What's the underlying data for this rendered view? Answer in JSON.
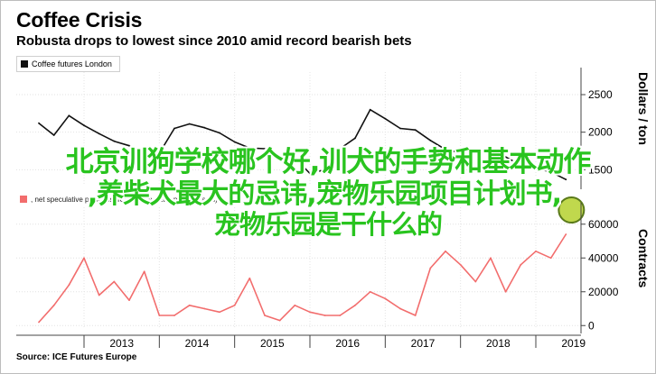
{
  "title": "Coffee Crisis",
  "subtitle": "Robusta drops to lowest since 2010 amid record bearish bets",
  "legend_top": "Coffee futures London",
  "legend_bottom": ", net speculative positions, ICE Futures Europe (contracts)",
  "axis_top_title": "Dollars / ton",
  "axis_bottom_title": "Contracts",
  "source": "Source: ICE Futures Europe",
  "overlay": {
    "line1": "北京训狗学校哪个好,训犬的手势和基本动作",
    "line2": ",养柴犬最大的忌讳,宠物乐园项目计划书,",
    "line3": "宠物乐园是干什么的"
  },
  "colors": {
    "price_line": "#111111",
    "positions_line": "#f26d6d",
    "marker_fill": "#b9d43a",
    "marker_stroke": "#5a7a1a",
    "overlay_text": "#29c41f"
  },
  "chart_data": [
    {
      "type": "line",
      "title": "Robusta drops to lowest since 2010 amid record bearish bets",
      "ylabel": "Dollars / ton",
      "series": [
        {
          "name": "Coffee futures London"
        }
      ],
      "x": [
        2012.4,
        2012.6,
        2012.8,
        2013.0,
        2013.2,
        2013.4,
        2013.6,
        2013.8,
        2014.0,
        2014.2,
        2014.4,
        2014.6,
        2014.8,
        2015.0,
        2015.2,
        2015.4,
        2015.6,
        2015.8,
        2016.0,
        2016.2,
        2016.4,
        2016.6,
        2016.8,
        2017.0,
        2017.2,
        2017.4,
        2017.6,
        2017.8,
        2018.0,
        2018.2,
        2018.4,
        2018.6,
        2018.8,
        2019.0,
        2019.2,
        2019.4
      ],
      "y": [
        2120,
        1960,
        2220,
        2090,
        1980,
        1880,
        1820,
        1650,
        1720,
        2050,
        2110,
        2060,
        1990,
        1870,
        1790,
        1780,
        1620,
        1660,
        1450,
        1500,
        1780,
        1920,
        2300,
        2180,
        2050,
        2030,
        1890,
        1770,
        1720,
        1780,
        1720,
        1670,
        1560,
        1520,
        1470,
        1370
      ],
      "xlim": [
        2012.1,
        2019.6
      ],
      "ylim": [
        1300,
        2800
      ],
      "yticks": [
        1500,
        2000,
        2500
      ],
      "grid": true
    },
    {
      "type": "line",
      "ylabel": "Contracts",
      "series": [
        {
          "name": ", net speculative positions, ICE Futures Europe (contracts)"
        }
      ],
      "x": [
        2012.4,
        2012.6,
        2012.8,
        2013.0,
        2013.2,
        2013.4,
        2013.6,
        2013.8,
        2014.0,
        2014.2,
        2014.4,
        2014.6,
        2014.8,
        2015.0,
        2015.2,
        2015.4,
        2015.6,
        2015.8,
        2016.0,
        2016.2,
        2016.4,
        2016.6,
        2016.8,
        2017.0,
        2017.2,
        2017.4,
        2017.6,
        2017.8,
        2018.0,
        2018.2,
        2018.4,
        2018.6,
        2018.8,
        2019.0,
        2019.2,
        2019.4
      ],
      "y": [
        2000,
        12000,
        24000,
        40000,
        18000,
        26000,
        15000,
        32000,
        6000,
        6000,
        12000,
        10000,
        8000,
        12000,
        28000,
        6000,
        3000,
        12000,
        8000,
        6000,
        6000,
        12000,
        20000,
        16000,
        10000,
        6000,
        34000,
        44000,
        36000,
        26000,
        40000,
        20000,
        36000,
        44000,
        40000,
        54000
      ],
      "xlim": [
        2012.1,
        2019.6
      ],
      "ylim": [
        -2000,
        70000
      ],
      "yticks": [
        0,
        20000,
        40000,
        60000
      ],
      "xticks": [
        "2013",
        "2014",
        "2015",
        "2016",
        "2017",
        "2018",
        "2019"
      ],
      "grid": true
    }
  ]
}
